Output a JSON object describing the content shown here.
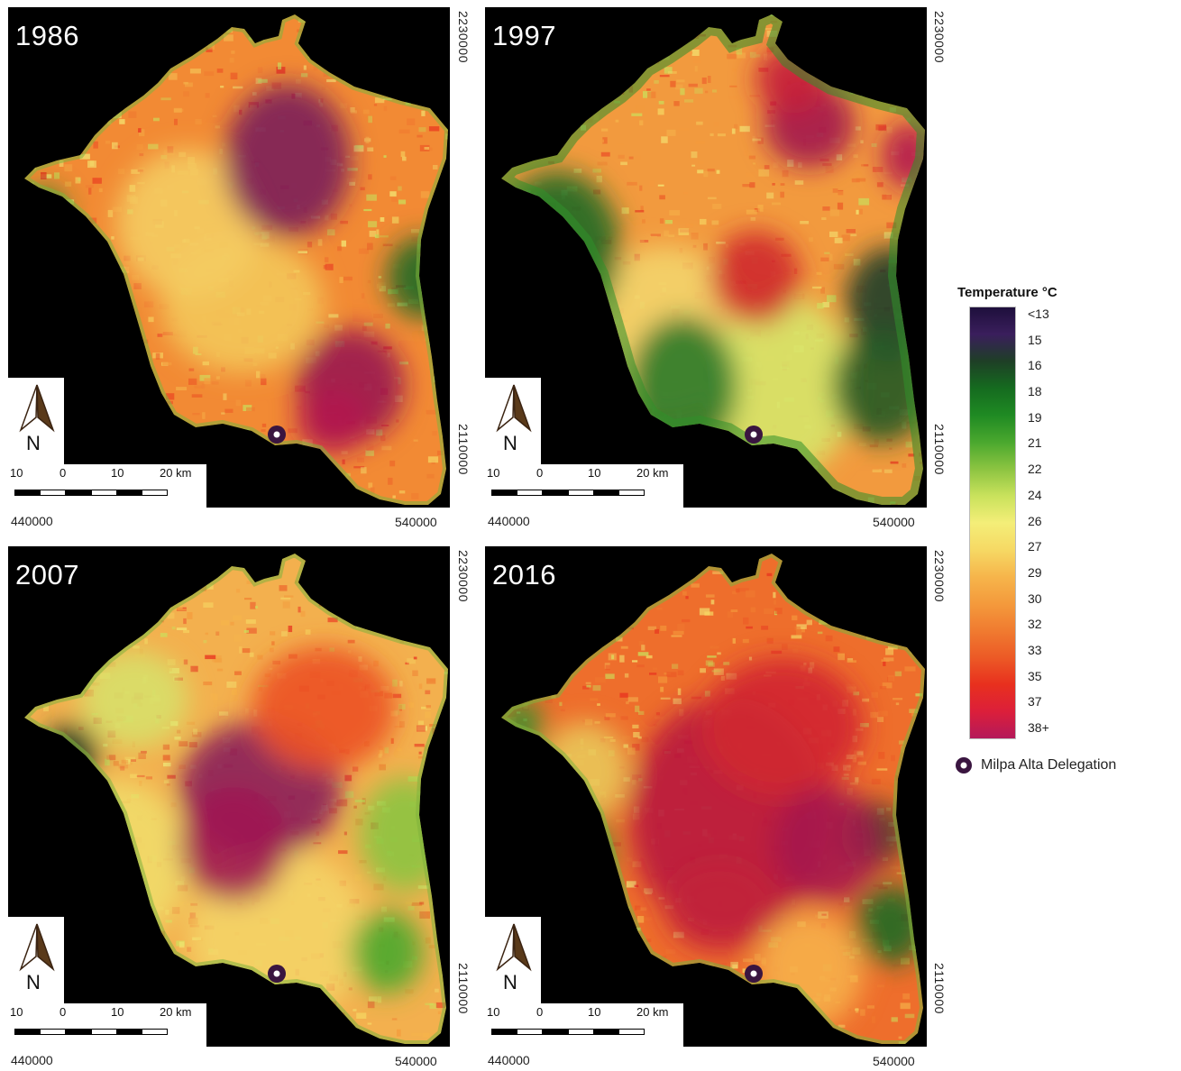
{
  "panels": [
    {
      "year": "1986"
    },
    {
      "year": "1997"
    },
    {
      "year": "2007"
    },
    {
      "year": "2016"
    }
  ],
  "scale_labels": [
    "10",
    "0",
    "10",
    "20 km"
  ],
  "north_label": "N",
  "coords": {
    "x_left": "440000",
    "x_right": "540000",
    "y_top": "2230000",
    "y_bottom": "2110000"
  },
  "legend": {
    "title": "Temperature °C",
    "ticks": [
      "<13",
      "15",
      "16",
      "18",
      "19",
      "21",
      "22",
      "24",
      "26",
      "27",
      "29",
      "30",
      "32",
      "33",
      "35",
      "37",
      "38+"
    ],
    "colors": [
      "#1e0f3c",
      "#3a1e5c",
      "#1e3f26",
      "#156b1f",
      "#1f8a23",
      "#4aa82e",
      "#8cc441",
      "#c9e25c",
      "#f4ee78",
      "#f6d964",
      "#f6b54b",
      "#f49a3c",
      "#f07b30",
      "#ec5a26",
      "#e8301e",
      "#dc1f3a",
      "#b4195a"
    ],
    "marker_label": "Milpa Alta Delegation"
  }
}
